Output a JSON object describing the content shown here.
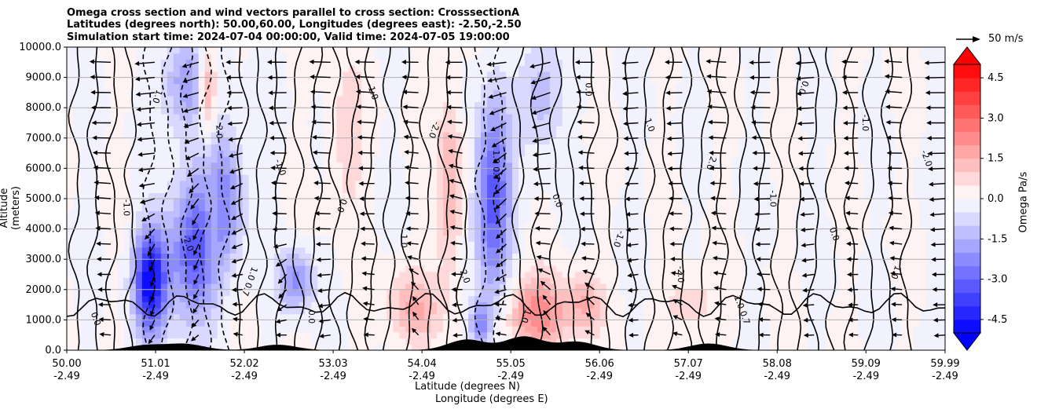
{
  "chart_data": {
    "type": "heatmap",
    "title_lines": [
      "Omega cross section and wind vectors parallel to cross section: CrosssectionA",
      "Latitudes (degrees north): 50.00,60.00, Longitudes (degrees east): -2.50,-2.50",
      "Simulation start time: 2024-07-04 00:00:00, Valid time: 2024-07-05 19:00:00"
    ],
    "ylabel": "Altitude (meters)",
    "xlabel_line1": "Latitude (degrees N)",
    "xlabel_line2": "Longitude (degrees E)",
    "ylim": [
      0,
      10000
    ],
    "xlim": [
      50.0,
      59.99
    ],
    "y_ticks": [
      "0.0",
      "1000.0",
      "2000.0",
      "3000.0",
      "4000.0",
      "5000.0",
      "6000.0",
      "7000.0",
      "8000.0",
      "9000.0",
      "10000.0"
    ],
    "x_ticks": [
      {
        "lat": "50.00",
        "lon": "-2.49"
      },
      {
        "lat": "51.01",
        "lon": "-2.49"
      },
      {
        "lat": "52.02",
        "lon": "-2.49"
      },
      {
        "lat": "53.03",
        "lon": "-2.49"
      },
      {
        "lat": "54.04",
        "lon": "-2.49"
      },
      {
        "lat": "55.05",
        "lon": "-2.49"
      },
      {
        "lat": "56.06",
        "lon": "-2.49"
      },
      {
        "lat": "57.07",
        "lon": "-2.49"
      },
      {
        "lat": "58.08",
        "lon": "-2.49"
      },
      {
        "lat": "59.09",
        "lon": "-2.49"
      },
      {
        "lat": "59.99",
        "lon": "-2.49"
      }
    ],
    "colorbar": {
      "label": "Omega Pa/s",
      "range": [
        -5.0,
        5.0
      ],
      "ticks": [
        "-4.5",
        "-3.0",
        "-1.5",
        "0.0",
        "1.5",
        "3.0",
        "4.5"
      ],
      "levels": 20,
      "min_color": "#0000ff",
      "max_color": "#ff0000",
      "extend": "both"
    },
    "vector_key": {
      "label": "50 m/s",
      "speed": 50
    },
    "omega_features": [
      {
        "lat": 50.95,
        "alt": 2300,
        "value": -5.0,
        "width": 0.18,
        "height": 1700
      },
      {
        "lat": 51.45,
        "alt": 3200,
        "value": -3.2,
        "width": 0.3,
        "height": 2200
      },
      {
        "lat": 51.75,
        "alt": 5200,
        "value": -2.4,
        "width": 0.25,
        "height": 2200
      },
      {
        "lat": 51.35,
        "alt": 8800,
        "value": -2.0,
        "width": 0.25,
        "height": 1600
      },
      {
        "lat": 52.6,
        "alt": 2300,
        "value": -2.2,
        "width": 0.2,
        "height": 1000
      },
      {
        "lat": 54.85,
        "alt": 5000,
        "value": -3.4,
        "width": 0.2,
        "height": 3200
      },
      {
        "lat": 55.4,
        "alt": 8500,
        "value": -1.4,
        "width": 0.25,
        "height": 1800
      },
      {
        "lat": 54.7,
        "alt": 900,
        "value": -2.2,
        "width": 0.12,
        "height": 800
      },
      {
        "lat": 51.6,
        "alt": 8600,
        "value": 2.2,
        "width": 0.1,
        "height": 1500
      },
      {
        "lat": 51.65,
        "alt": 4500,
        "value": 1.6,
        "width": 0.12,
        "height": 1800
      },
      {
        "lat": 53.95,
        "alt": 1400,
        "value": 1.5,
        "width": 0.3,
        "height": 1200
      },
      {
        "lat": 55.35,
        "alt": 1200,
        "value": 2.4,
        "width": 0.35,
        "height": 1200
      },
      {
        "lat": 55.9,
        "alt": 1500,
        "value": 1.4,
        "width": 0.2,
        "height": 1000
      },
      {
        "lat": 54.35,
        "alt": 5400,
        "value": 1.6,
        "width": 0.15,
        "height": 3000
      },
      {
        "lat": 53.2,
        "alt": 7000,
        "value": 0.9,
        "width": 0.2,
        "height": 2500
      },
      {
        "lat": 57.1,
        "alt": 1500,
        "value": 0.9,
        "width": 0.3,
        "height": 1000
      }
    ],
    "contour_labels": [
      "0.0",
      "-1.0",
      "1.0",
      "-2.0",
      "2.0",
      "1.0 0.7",
      "-1.0",
      "0.0"
    ],
    "terrain_peaks": [
      {
        "lat": 50.9,
        "height": 160
      },
      {
        "lat": 51.35,
        "height": 200
      },
      {
        "lat": 52.4,
        "height": 180
      },
      {
        "lat": 54.55,
        "height": 350
      },
      {
        "lat": 55.2,
        "height": 450
      },
      {
        "lat": 55.8,
        "height": 280
      },
      {
        "lat": 57.3,
        "height": 220
      }
    ]
  }
}
